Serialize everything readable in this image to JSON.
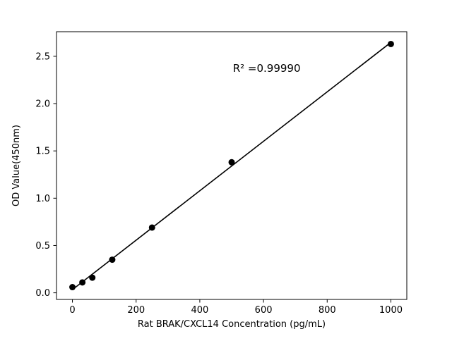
{
  "chart_data": {
    "type": "scatter",
    "title": "",
    "xlabel": "Rat BRAK/CXCL14 Concentration (pg/mL)",
    "ylabel": "OD Value(450nm)",
    "x": [
      0,
      31.25,
      62.5,
      125,
      250,
      500,
      1000
    ],
    "y": [
      0.06,
      0.11,
      0.16,
      0.35,
      0.69,
      1.38,
      2.63
    ],
    "fit_line": true,
    "annotation": {
      "text": "R² =0.99990",
      "fx": 0.6,
      "fy": 0.15
    },
    "xlim": [
      -50,
      1050
    ],
    "ylim": [
      -0.07,
      2.76
    ],
    "xticks": [
      0,
      200,
      400,
      600,
      800,
      1000
    ],
    "yticks": [
      0.0,
      0.5,
      1.0,
      1.5,
      2.0,
      2.5
    ],
    "grid": false,
    "legend": "none",
    "point_color": "#000000",
    "line_color": "#000000",
    "axis_color": "#000000",
    "background_color": "#ffffff"
  }
}
